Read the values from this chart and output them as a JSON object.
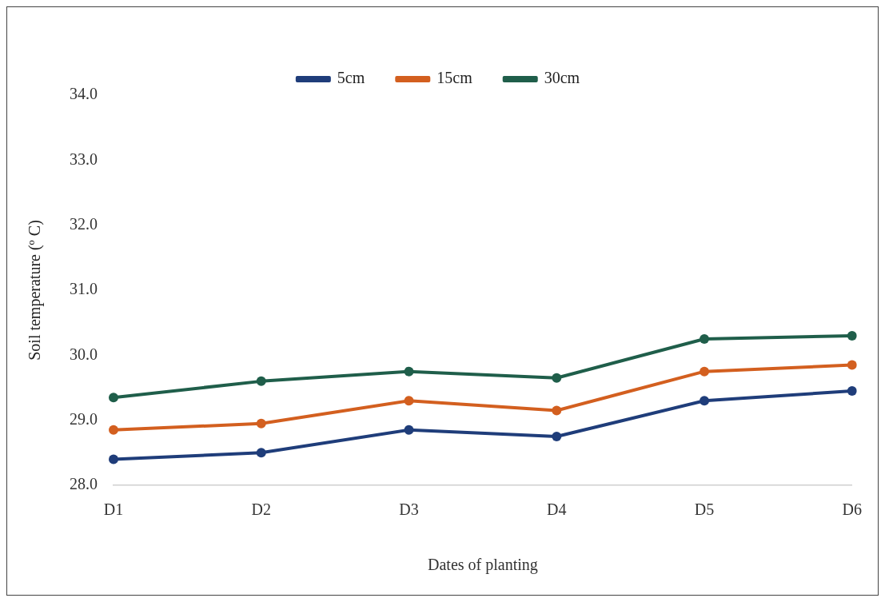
{
  "chart_data": {
    "type": "line",
    "xlabel": "Dates of planting",
    "ylabel": "Soil temperature (º C)",
    "categories": [
      "D1",
      "D2",
      "D3",
      "D4",
      "D5",
      "D6"
    ],
    "series": [
      {
        "name": "5cm",
        "color": "#1f3d7a",
        "values": [
          28.4,
          28.5,
          28.85,
          28.75,
          29.3,
          29.45
        ]
      },
      {
        "name": "15cm",
        "color": "#d35f1f",
        "values": [
          28.85,
          28.95,
          29.3,
          29.15,
          29.75,
          29.85
        ]
      },
      {
        "name": "30cm",
        "color": "#1f5e4a",
        "values": [
          29.35,
          29.6,
          29.75,
          29.65,
          30.25,
          30.3
        ]
      }
    ],
    "ylim": [
      28,
      34
    ],
    "yticks": [
      {
        "value": 28,
        "label": "28.0"
      },
      {
        "value": 29,
        "label": "29.0"
      },
      {
        "value": 30,
        "label": "30.0"
      },
      {
        "value": 31,
        "label": "31.0"
      },
      {
        "value": 32,
        "label": "32.0"
      },
      {
        "value": 33,
        "label": "33.0"
      },
      {
        "value": 34,
        "label": "34.0"
      }
    ],
    "grid": false,
    "legend": "top",
    "marker": "circle",
    "line_style": "solid"
  }
}
